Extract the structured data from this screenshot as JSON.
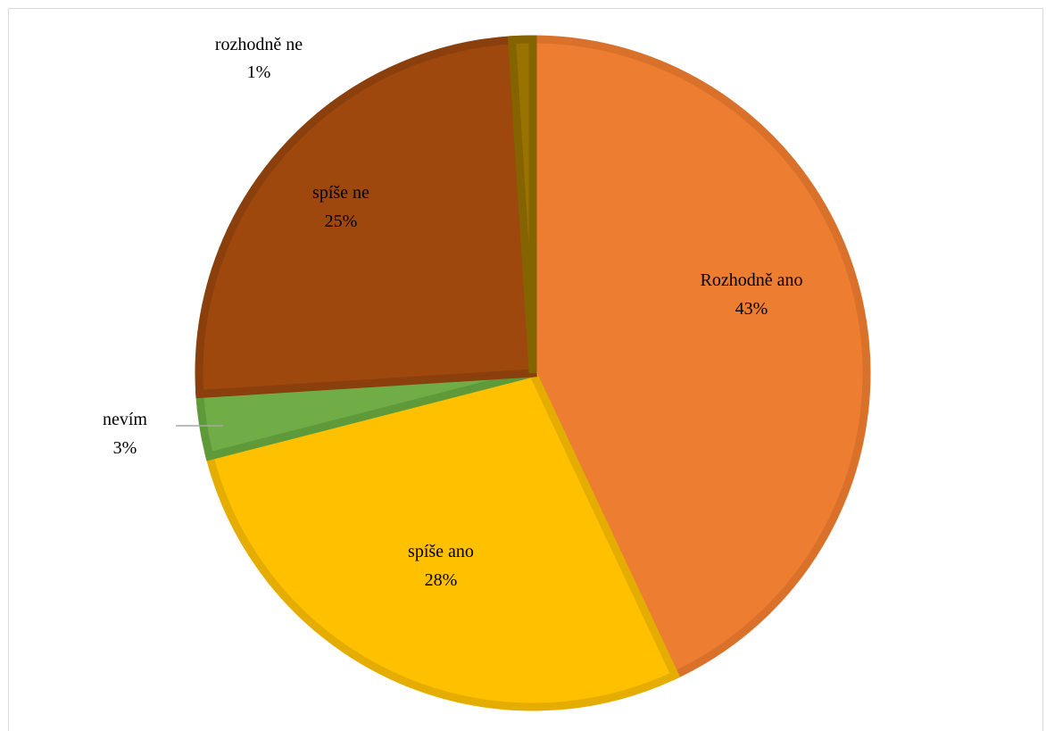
{
  "chart_data": {
    "type": "pie",
    "title": "",
    "categories": [
      "Rozhodně ano",
      "spíše ano",
      "nevím",
      "spíše ne",
      "rozhodně ne"
    ],
    "values": [
      43,
      28,
      3,
      25,
      1
    ],
    "labels": [
      "43%",
      "28%",
      "3%",
      "25%",
      "1%"
    ],
    "colors": [
      "#ED7D31",
      "#FFC000",
      "#70AD47",
      "#9E480E",
      "#997300"
    ],
    "border_colors": [
      "#D9712B",
      "#E5AD00",
      "#5E9A3A",
      "#8A3F0C",
      "#856400"
    ],
    "legend": "none",
    "start_angle_deg": 0,
    "direction": "clockwise"
  }
}
